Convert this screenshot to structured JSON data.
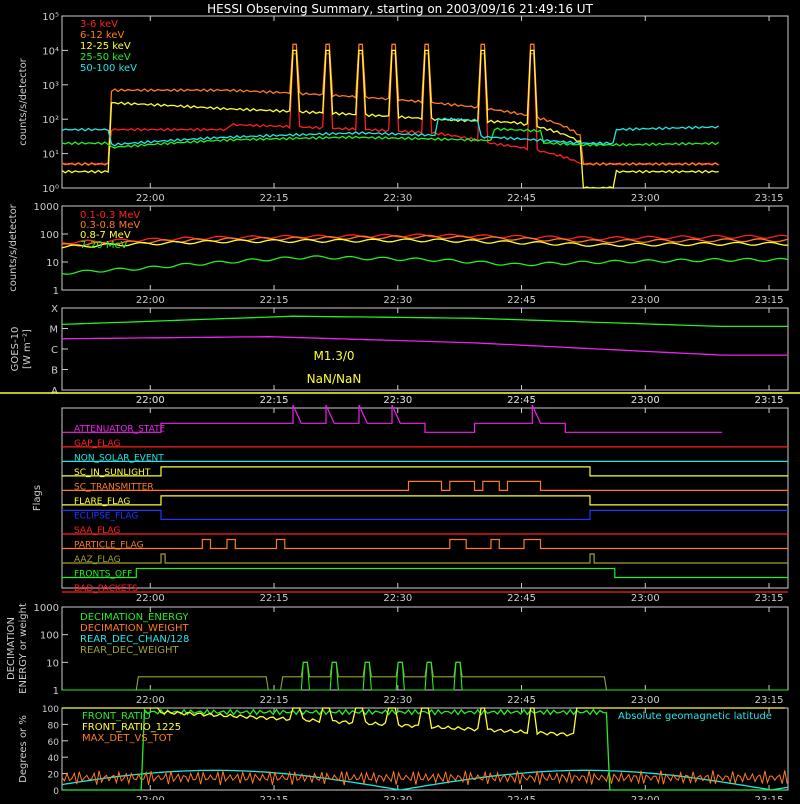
{
  "title": "HESSI Observing Summary, starting on 2003/09/16 21:49:16 UT",
  "time_ticks": [
    "22:00",
    "22:15",
    "22:30",
    "22:45",
    "23:00",
    "23:15"
  ],
  "colors": {
    "red": "#ff2020",
    "orange": "#ff7a20",
    "yellow": "#ffff30",
    "green": "#22ee22",
    "cyan": "#22e5e5",
    "magenta": "#ee22ee",
    "blue": "#2233ff",
    "olive": "#a0a030",
    "pink": "#ff40b0",
    "white": "#ffffff",
    "axis": "#cccccc"
  },
  "chart_data": [
    {
      "id": "count_rates",
      "type": "line",
      "ylabel": "counts/s/detector",
      "yscale": "log",
      "ylim": [
        1,
        100000
      ],
      "yticks": [
        "10⁰",
        "10¹",
        "10²",
        "10³",
        "10⁴",
        "10⁵"
      ],
      "series": [
        {
          "name": "3-6 keV",
          "color": "red",
          "values": [
            [
              0,
              5
            ],
            [
              6,
              5
            ],
            [
              6,
              50
            ],
            [
              20,
              50
            ],
            [
              20,
              70
            ],
            [
              45,
              40
            ],
            [
              52,
              20
            ],
            [
              63,
              5
            ],
            [
              67,
              5
            ],
            [
              80,
              5
            ]
          ]
        },
        {
          "name": "6-12 keV",
          "color": "orange",
          "values": [
            [
              0,
              5
            ],
            [
              6,
              5
            ],
            [
              6,
              700
            ],
            [
              20,
              700
            ],
            [
              45,
              300
            ],
            [
              55,
              150
            ],
            [
              63,
              30
            ],
            [
              63,
              5
            ],
            [
              67,
              5
            ],
            [
              80,
              5
            ]
          ]
        },
        {
          "name": "12-25 keV",
          "color": "yellow",
          "values": [
            [
              0,
              3
            ],
            [
              6,
              3
            ],
            [
              6,
              300
            ],
            [
              20,
              200
            ],
            [
              45,
              100
            ],
            [
              55,
              80
            ],
            [
              63,
              20
            ],
            [
              63,
              1
            ],
            [
              67,
              1
            ],
            [
              67,
              3
            ],
            [
              80,
              3
            ]
          ]
        },
        {
          "name": "25-50 keV",
          "color": "green",
          "values": [
            [
              0,
              20
            ],
            [
              6,
              20
            ],
            [
              6,
              15
            ],
            [
              20,
              25
            ],
            [
              35,
              30
            ],
            [
              50,
              25
            ],
            [
              63,
              18
            ],
            [
              67,
              18
            ],
            [
              80,
              20
            ]
          ]
        },
        {
          "name": "50-100 keV",
          "color": "cyan",
          "values": [
            [
              0,
              50
            ],
            [
              6,
              50
            ],
            [
              6,
              18
            ],
            [
              20,
              30
            ],
            [
              36,
              40
            ],
            [
              52,
              30
            ],
            [
              63,
              20
            ],
            [
              67,
              20
            ],
            [
              67,
              50
            ],
            [
              80,
              60
            ]
          ]
        }
      ]
    },
    {
      "id": "high_energy",
      "type": "line",
      "ylabel": "counts/s/detector",
      "yscale": "log",
      "ylim": [
        1,
        1000
      ],
      "yticks": [
        "1",
        "10",
        "100",
        "1000"
      ],
      "series": [
        {
          "name": "0.1-0.3 MeV",
          "color": "red",
          "values": [
            [
              0,
              50
            ],
            [
              20,
              75
            ],
            [
              45,
              90
            ],
            [
              65,
              70
            ],
            [
              80,
              80
            ]
          ]
        },
        {
          "name": "0.3-0.8 MeV",
          "color": "orange",
          "values": [
            [
              0,
              40
            ],
            [
              20,
              65
            ],
            [
              45,
              80
            ],
            [
              65,
              55
            ],
            [
              80,
              60
            ]
          ]
        },
        {
          "name": "0.8-7 MeV",
          "color": "yellow",
          "values": [
            [
              0,
              35
            ],
            [
              20,
              55
            ],
            [
              45,
              60
            ],
            [
              65,
              40
            ],
            [
              80,
              45
            ]
          ]
        },
        {
          "name": "7-20 MeV",
          "color": "green",
          "values": [
            [
              0,
              4
            ],
            [
              10,
              6
            ],
            [
              20,
              10
            ],
            [
              30,
              15
            ],
            [
              45,
              12
            ],
            [
              55,
              8
            ],
            [
              65,
              10
            ],
            [
              80,
              12
            ]
          ]
        }
      ]
    },
    {
      "id": "goes",
      "type": "line",
      "ylabel": "GOES-10",
      "ylabel2": "[W m⁻²]",
      "yticks": [
        "A",
        "B",
        "C",
        "M",
        "X"
      ],
      "annotation1": "M1.3/0",
      "annotation2": "NaN/NaN",
      "series": [
        {
          "name": "green",
          "color": "green",
          "values": [
            [
              0,
              3.2
            ],
            [
              28,
              3.6
            ],
            [
              50,
              3.5
            ],
            [
              80,
              3.1
            ]
          ]
        },
        {
          "name": "magenta",
          "color": "magenta",
          "values": [
            [
              0,
              2.5
            ],
            [
              25,
              2.6
            ],
            [
              50,
              2.3
            ],
            [
              80,
              1.7
            ]
          ]
        }
      ]
    },
    {
      "id": "flags",
      "type": "line",
      "ylabel": "Flags",
      "series": [
        {
          "name": "ATTENUATOR_STATE",
          "color": "magenta"
        },
        {
          "name": "GAP_FLAG",
          "color": "red"
        },
        {
          "name": "NON_SOLAR_EVENT",
          "color": "cyan"
        },
        {
          "name": "SC_IN_SUNLIGHT",
          "color": "yellow"
        },
        {
          "name": "SC_TRANSMITTER",
          "color": "orange"
        },
        {
          "name": "FLARE_FLAG",
          "color": "yellow"
        },
        {
          "name": "ECLIPSE_FLAG",
          "color": "blue"
        },
        {
          "name": "SAA_FLAG",
          "color": "red"
        },
        {
          "name": "PARTICLE_FLAG",
          "color": "orange"
        },
        {
          "name": "AAZ_FLAG",
          "color": "olive"
        },
        {
          "name": "FRONTS_OFF",
          "color": "green"
        },
        {
          "name": "BAD_PACKETS",
          "color": "red"
        }
      ]
    },
    {
      "id": "decimation",
      "type": "line",
      "ylabel": "DECIMATION",
      "ylabel2": "ENERGY or weight",
      "yscale": "log",
      "ylim": [
        1,
        1000
      ],
      "yticks": [
        "1",
        "10",
        "100",
        "1000"
      ],
      "series": [
        {
          "name": "DECIMATION_ENERGY",
          "color": "green"
        },
        {
          "name": "DECIMATION_WEIGHT",
          "color": "orange"
        },
        {
          "name": "REAR_DEC_CHAN/128",
          "color": "cyan"
        },
        {
          "name": "REAR_DEC_WEIGHT",
          "color": "olive"
        }
      ]
    },
    {
      "id": "ratios",
      "type": "line",
      "ylabel": "Degrees or %",
      "yticks": [
        "0",
        "20",
        "40",
        "60",
        "80",
        "100"
      ],
      "annotation1": "Absolute geomagnetic latitude",
      "series": [
        {
          "name": "FRONT_RATIO",
          "color": "green"
        },
        {
          "name": "FRONT_RATIO_1225",
          "color": "yellow"
        },
        {
          "name": "MAX_DET_VS_TOT",
          "color": "orange"
        }
      ]
    }
  ]
}
